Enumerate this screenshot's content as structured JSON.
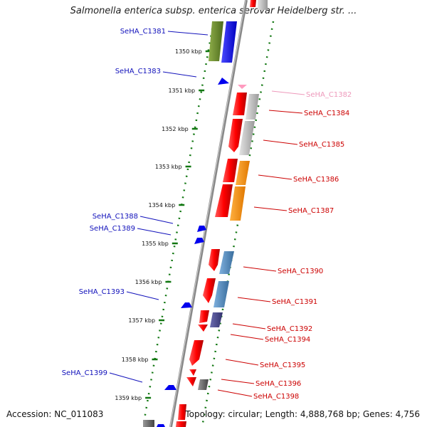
{
  "title": "Salmonella enterica subsp. enterica serovar Heidelberg str. ...",
  "accession": "Accession: NC_011083",
  "topology": "Topology: circular; Length: 4,888,768 bp; Genes: 4,756",
  "colors": {
    "red": "#ff0000",
    "blue": "#0000ff",
    "green_dots": "#117711",
    "label_blue": "#1111bb",
    "label_red": "#cc0000",
    "label_pink": "#ee99bb"
  },
  "ruler": [
    {
      "label": "1350 kbp",
      "kbp": 1350
    },
    {
      "label": "1351 kbp",
      "kbp": 1351
    },
    {
      "label": "1352 kbp",
      "kbp": 1352
    },
    {
      "label": "1353 kbp",
      "kbp": 1353
    },
    {
      "label": "1354 kbp",
      "kbp": 1354
    },
    {
      "label": "1355 kbp",
      "kbp": 1355
    },
    {
      "label": "1356 kbp",
      "kbp": 1356
    },
    {
      "label": "1357 kbp",
      "kbp": 1357
    },
    {
      "label": "1358 kbp",
      "kbp": 1358
    },
    {
      "label": "1359 kbp",
      "kbp": 1359
    }
  ],
  "genes_left": [
    {
      "label": "SeHA_C1381",
      "color": "#1111bb"
    },
    {
      "label": "SeHA_C1383",
      "color": "#1111bb"
    },
    {
      "label": "SeHA_C1388",
      "color": "#1111bb"
    },
    {
      "label": "SeHA_C1389",
      "color": "#1111bb"
    },
    {
      "label": "SeHA_C1393",
      "color": "#1111bb"
    },
    {
      "label": "SeHA_C1399",
      "color": "#1111bb"
    }
  ],
  "genes_right": [
    {
      "label": "SeHA_C1382",
      "color": "#ee99bb"
    },
    {
      "label": "SeHA_C1384",
      "color": "#cc0000"
    },
    {
      "label": "SeHA_C1385",
      "color": "#cc0000"
    },
    {
      "label": "SeHA_C1386",
      "color": "#cc0000"
    },
    {
      "label": "SeHA_C1387",
      "color": "#cc0000"
    },
    {
      "label": "SeHA_C1390",
      "color": "#cc0000"
    },
    {
      "label": "SeHA_C1391",
      "color": "#cc0000"
    },
    {
      "label": "SeHA_C1392",
      "color": "#cc0000"
    },
    {
      "label": "SeHA_C1394",
      "color": "#cc0000"
    },
    {
      "label": "SeHA_C1395",
      "color": "#cc0000"
    },
    {
      "label": "SeHA_C1396",
      "color": "#cc0000"
    },
    {
      "label": "SeHA_C1398",
      "color": "#cc0000"
    }
  ]
}
